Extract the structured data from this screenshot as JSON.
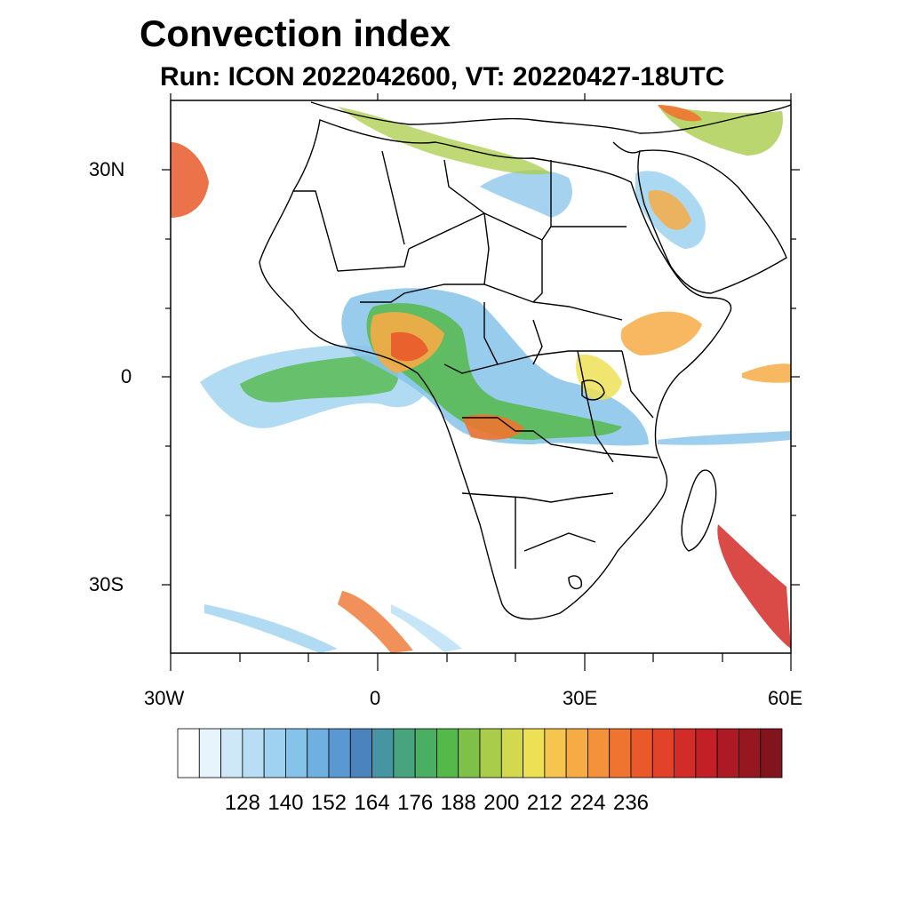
{
  "title": "Convection index",
  "subtitle": "Run: ICON 2022042600,  VT: 20220427-18UTC",
  "lat_labels": [
    "30N",
    "0",
    "30S"
  ],
  "lon_labels": [
    "30W",
    "0",
    "30E",
    "60E"
  ],
  "colorbar": {
    "tick_labels": [
      "128",
      "140",
      "152",
      "164",
      "176",
      "188",
      "200",
      "212",
      "224",
      "236"
    ],
    "colors": [
      "#ffffff",
      "#e8f4fb",
      "#cfe8f7",
      "#b8def5",
      "#9ed2f0",
      "#86c3ea",
      "#6fb0e0",
      "#5a98d1",
      "#4b84bd",
      "#4795a3",
      "#47a47f",
      "#4aaf62",
      "#55b94a",
      "#7fc148",
      "#a9cc4a",
      "#d2d94f",
      "#ede055",
      "#f6c54f",
      "#f6ab45",
      "#f4913b",
      "#ef7430",
      "#e9592a",
      "#e14228",
      "#d32c28",
      "#c21f27",
      "#ad1a24",
      "#971721",
      "#82141d"
    ]
  }
}
